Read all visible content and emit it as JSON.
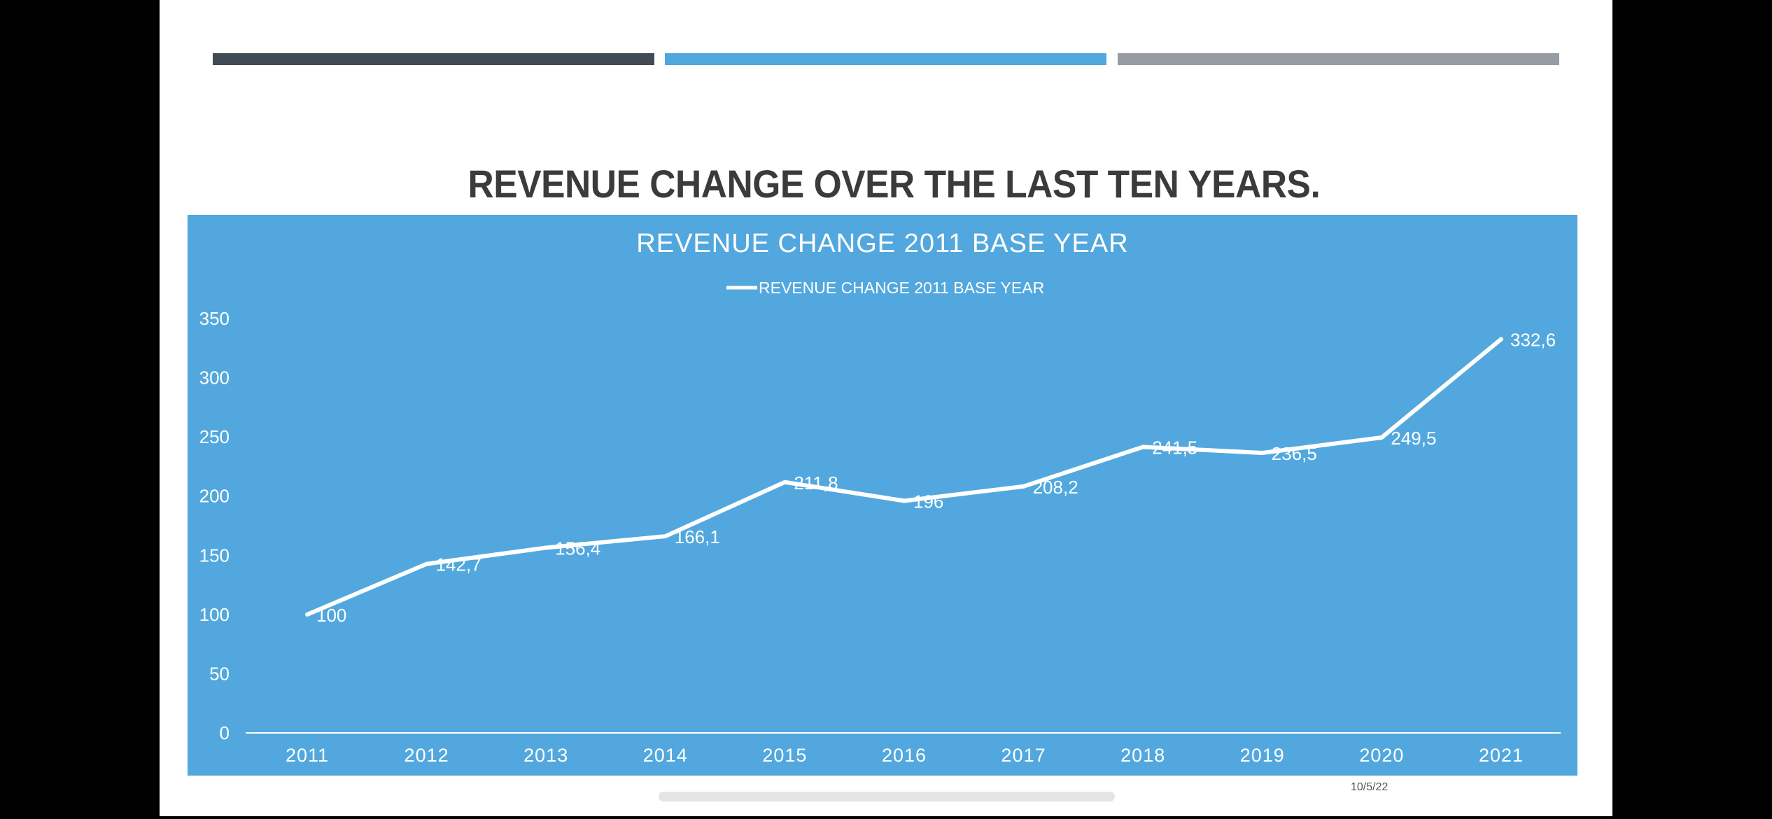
{
  "slide": {
    "title": "REVENUE CHANGE OVER THE LAST TEN YEARS.",
    "date": "10/5/22",
    "background": "#ffffff",
    "accent_bars": [
      "#414b55",
      "#4fa7dc",
      "#979ca4"
    ]
  },
  "chart_data": {
    "type": "line",
    "title": "REVENUE CHANGE 2011 BASE YEAR",
    "legend": {
      "label": "REVENUE CHANGE 2011 BASE YEAR",
      "position": "top"
    },
    "categories": [
      "2011",
      "2012",
      "2013",
      "2014",
      "2015",
      "2016",
      "2017",
      "2018",
      "2019",
      "2020",
      "2021"
    ],
    "series": [
      {
        "name": "REVENUE CHANGE 2011 BASE YEAR",
        "values": [
          100,
          142.7,
          156.4,
          166.1,
          211.8,
          196,
          208.2,
          241.5,
          236.5,
          249.5,
          332.6
        ],
        "labels": [
          "100",
          "142,7",
          "156,4",
          "166,1",
          "211,8",
          "196",
          "208,2",
          "241,5",
          "236,5",
          "249,5",
          "332,6"
        ],
        "color": "#ffffff"
      }
    ],
    "ylim": [
      0,
      350
    ],
    "yticks": [
      "0",
      "50",
      "100",
      "150",
      "200",
      "250",
      "300",
      "350"
    ],
    "xlabel": "",
    "ylabel": "",
    "grid": false,
    "background": "#52a8de"
  }
}
